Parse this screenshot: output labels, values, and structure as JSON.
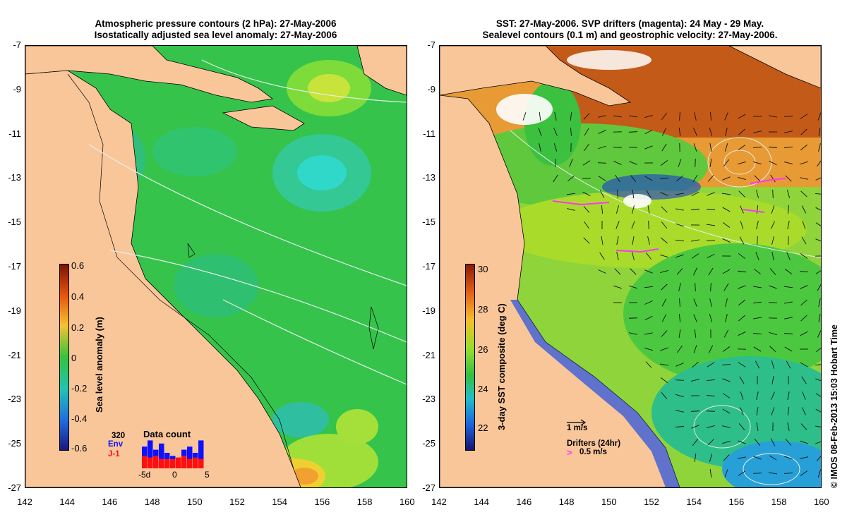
{
  "left_panel": {
    "title_line1": "Atmospheric pressure contours (2 hPa): 27-May-2006",
    "title_line2": "Isostatically adjusted sea level anomaly: 27-May-2006",
    "colorbar": {
      "label": "Sea level anomaly (m)",
      "ticks": [
        "0.6",
        "0.4",
        "0.2",
        "0",
        "-0.2",
        "-0.4",
        "-0.6"
      ]
    },
    "inset": {
      "title": "Data count",
      "max_label": "320",
      "series1": "Env",
      "series2": "J-1",
      "x_ticks": [
        "-5d",
        "0",
        "5"
      ],
      "series1_color": "#1010ff",
      "series2_color": "#ff1010"
    }
  },
  "right_panel": {
    "title_line1": "SST: 27-May-2006. SVP drifters (magenta): 24 May - 29 May.",
    "title_line2": "Sealevel contours (0.1 m) and geostrophic velocity: 27-May-2006.",
    "colorbar": {
      "label": "3-day SST composite (deg C)",
      "ticks": [
        "30",
        "28",
        "26",
        "24",
        "22"
      ]
    },
    "scale_label": "1 m/s",
    "drifters_label": "Drifters (24hr)",
    "drifters_scale": "0.5 m/s",
    "drifter_color": "#ff33ff"
  },
  "y_ticks": [
    "-7",
    "-9",
    "-11",
    "-13",
    "-15",
    "-17",
    "-19",
    "-21",
    "-23",
    "-25",
    "-27"
  ],
  "x_ticks": [
    "142",
    "144",
    "146",
    "148",
    "150",
    "152",
    "154",
    "156",
    "158",
    "160"
  ],
  "credit": "© IMOS 08-Feb-2013 15:03 Hobart Time",
  "colors": {
    "land": "#f9c69a",
    "ocean_mid": "#2fc24a"
  }
}
